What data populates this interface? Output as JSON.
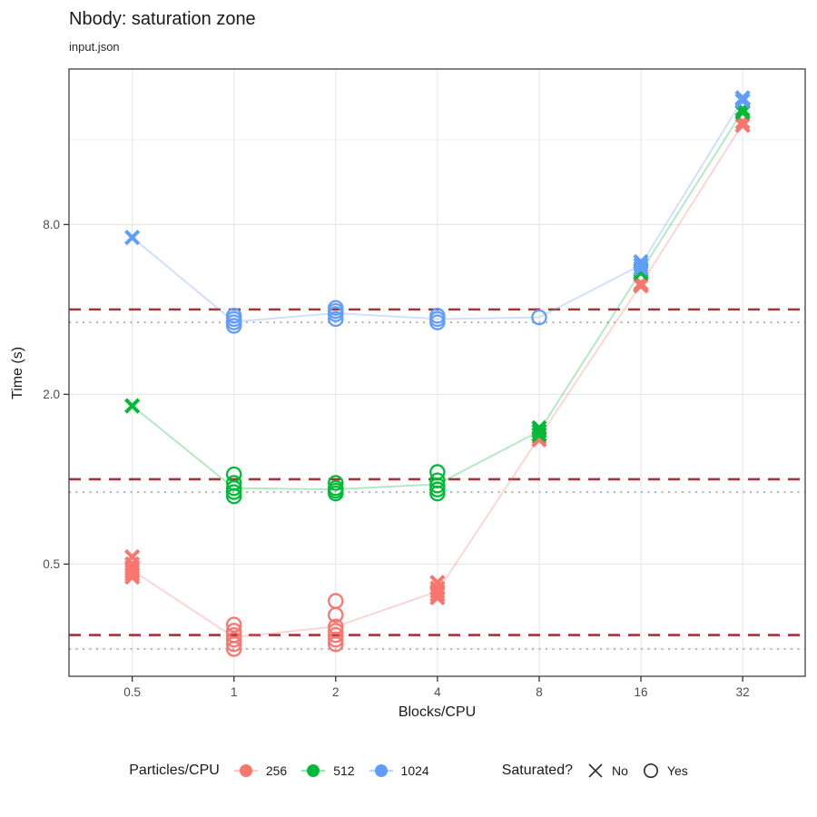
{
  "header": {
    "title": "Nbody: saturation zone",
    "subtitle": "input.json"
  },
  "axes": {
    "x": {
      "label": "Blocks/CPU",
      "scale": "log2",
      "domain": [
        0.325,
        49
      ],
      "tick_labels": [
        "0.5",
        "1",
        "2",
        "4",
        "8",
        "16",
        "32"
      ],
      "tick_values": [
        0.5,
        1,
        2,
        4,
        8,
        16,
        32
      ]
    },
    "y": {
      "label": "Time (s)",
      "scale": "log2",
      "domain": [
        0.2,
        28.5
      ],
      "tick_labels": [
        "8.0",
        "2.0",
        "0.5"
      ],
      "tick_values": [
        8,
        2,
        0.5
      ],
      "minor_grid_values": [
        16,
        4,
        1,
        0.25
      ]
    }
  },
  "legend": {
    "color": {
      "title": "Particles/CPU",
      "items": [
        {
          "label": "256",
          "color": "#F8766D"
        },
        {
          "label": "512",
          "color": "#00BA38"
        },
        {
          "label": "1024",
          "color": "#619CFF"
        }
      ]
    },
    "shape": {
      "title": "Saturated?",
      "items": [
        {
          "label": "No",
          "shape": "x"
        },
        {
          "label": "Yes",
          "shape": "circle"
        }
      ]
    }
  },
  "chart_data": {
    "type": "scatter",
    "title": "Nbody: saturation zone",
    "subtitle": "input.json",
    "xlabel": "Blocks/CPU",
    "ylabel": "Time (s)",
    "x_scale": "log2",
    "y_scale": "log2",
    "grid": true,
    "x_values": [
      0.5,
      1,
      2,
      4,
      8,
      16,
      32
    ],
    "series": [
      {
        "name": "256",
        "color": "#F8766D",
        "line": [
          0.475,
          0.275,
          0.3,
          0.4,
          1.41,
          4.9,
          18.2
        ],
        "points": [
          {
            "x": 0.5,
            "shape": "x",
            "saturated": false,
            "reps": [
              0.53,
              0.5,
              0.48,
              0.47,
              0.46,
              0.45
            ]
          },
          {
            "x": 1,
            "shape": "circle",
            "saturated": true,
            "reps": [
              0.305,
              0.29,
              0.28,
              0.27,
              0.26,
              0.25
            ]
          },
          {
            "x": 2,
            "shape": "circle",
            "saturated": true,
            "reps": [
              0.37,
              0.33,
              0.3,
              0.29,
              0.28,
              0.27,
              0.26
            ]
          },
          {
            "x": 4,
            "shape": "x",
            "saturated": false,
            "reps": [
              0.43,
              0.41,
              0.4,
              0.39,
              0.38
            ]
          },
          {
            "x": 8,
            "shape": "x",
            "saturated": false,
            "reps": [
              1.44,
              1.41,
              1.38
            ]
          },
          {
            "x": 16,
            "shape": "x",
            "saturated": false,
            "reps": [
              4.95,
              4.9,
              4.85
            ]
          },
          {
            "x": 32,
            "shape": "x",
            "saturated": false,
            "reps": [
              18.5,
              18.0
            ]
          }
        ]
      },
      {
        "name": "512",
        "color": "#00BA38",
        "line": [
          1.82,
          0.93,
          0.92,
          0.96,
          1.48,
          5.45,
          20.2
        ],
        "points": [
          {
            "x": 0.5,
            "shape": "x",
            "saturated": false,
            "reps": [
              1.82
            ]
          },
          {
            "x": 1,
            "shape": "circle",
            "saturated": true,
            "reps": [
              1.04,
              0.97,
              0.93,
              0.9,
              0.87
            ]
          },
          {
            "x": 2,
            "shape": "circle",
            "saturated": true,
            "reps": [
              0.97,
              0.93,
              0.91,
              0.89
            ]
          },
          {
            "x": 4,
            "shape": "circle",
            "saturated": true,
            "reps": [
              1.06,
              0.99,
              0.95,
              0.92,
              0.89
            ]
          },
          {
            "x": 8,
            "shape": "x",
            "saturated": false,
            "reps": [
              1.52,
              1.48,
              1.44
            ]
          },
          {
            "x": 16,
            "shape": "x",
            "saturated": false,
            "reps": [
              5.5,
              5.4
            ]
          },
          {
            "x": 32,
            "shape": "x",
            "saturated": false,
            "reps": [
              20.5,
              20.0
            ]
          }
        ]
      },
      {
        "name": "1024",
        "color": "#619CFF",
        "line": [
          7.2,
          3.62,
          3.88,
          3.7,
          3.75,
          5.75,
          22.2
        ],
        "points": [
          {
            "x": 0.5,
            "shape": "x",
            "saturated": false,
            "reps": [
              7.2
            ]
          },
          {
            "x": 1,
            "shape": "circle",
            "saturated": true,
            "reps": [
              3.8,
              3.7,
              3.6,
              3.5
            ]
          },
          {
            "x": 2,
            "shape": "circle",
            "saturated": true,
            "reps": [
              4.05,
              3.95,
              3.85,
              3.7
            ]
          },
          {
            "x": 4,
            "shape": "circle",
            "saturated": true,
            "reps": [
              3.8,
              3.7,
              3.6
            ]
          },
          {
            "x": 8,
            "shape": "circle",
            "saturated": true,
            "reps": [
              3.75
            ]
          },
          {
            "x": 16,
            "shape": "x",
            "saturated": false,
            "reps": [
              5.9,
              5.75,
              5.6
            ]
          },
          {
            "x": 32,
            "shape": "x",
            "saturated": false,
            "reps": [
              22.5,
              22.0
            ]
          }
        ]
      }
    ],
    "hlines": {
      "dashed": {
        "style": "dashed",
        "color": "#a23535",
        "values": [
          4.0,
          1.0,
          0.28
        ]
      },
      "dotted": {
        "style": "dotted",
        "color": "#b0b0b0",
        "values": [
          3.6,
          0.9,
          0.25
        ]
      }
    },
    "legend_position": "bottom"
  },
  "style": {
    "panel_border": "#404040",
    "grid_major": "#e8e8e8",
    "grid_minor": "#f1f1f1",
    "tick_color": "#333333",
    "tick_label_color": "#4d4d4d",
    "shape_key_color": "#333333"
  }
}
